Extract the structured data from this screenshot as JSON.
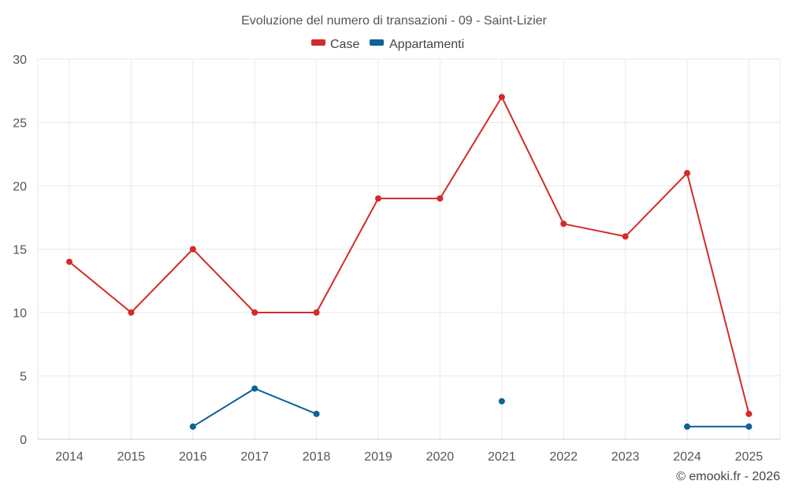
{
  "chart_data": {
    "type": "line",
    "title": "Evoluzione del numero di transazioni - 09 - Saint-Lizier",
    "xlabel": "",
    "ylabel": "",
    "categories": [
      "2014",
      "2015",
      "2016",
      "2017",
      "2018",
      "2019",
      "2020",
      "2021",
      "2022",
      "2023",
      "2024",
      "2025"
    ],
    "ylim": [
      0,
      30
    ],
    "yticks": [
      0,
      5,
      10,
      15,
      20,
      25,
      30
    ],
    "grid": true,
    "legend_position": "top-center",
    "series": [
      {
        "name": "Case",
        "color": "#d42a2a",
        "values": [
          14,
          10,
          15,
          10,
          10,
          19,
          19,
          27,
          17,
          16,
          21,
          2
        ]
      },
      {
        "name": "Appartamenti",
        "color": "#0b6396",
        "values": [
          null,
          null,
          1,
          4,
          2,
          null,
          null,
          3,
          null,
          null,
          1,
          1
        ]
      }
    ]
  },
  "credit": "© emooki.fr - 2026"
}
